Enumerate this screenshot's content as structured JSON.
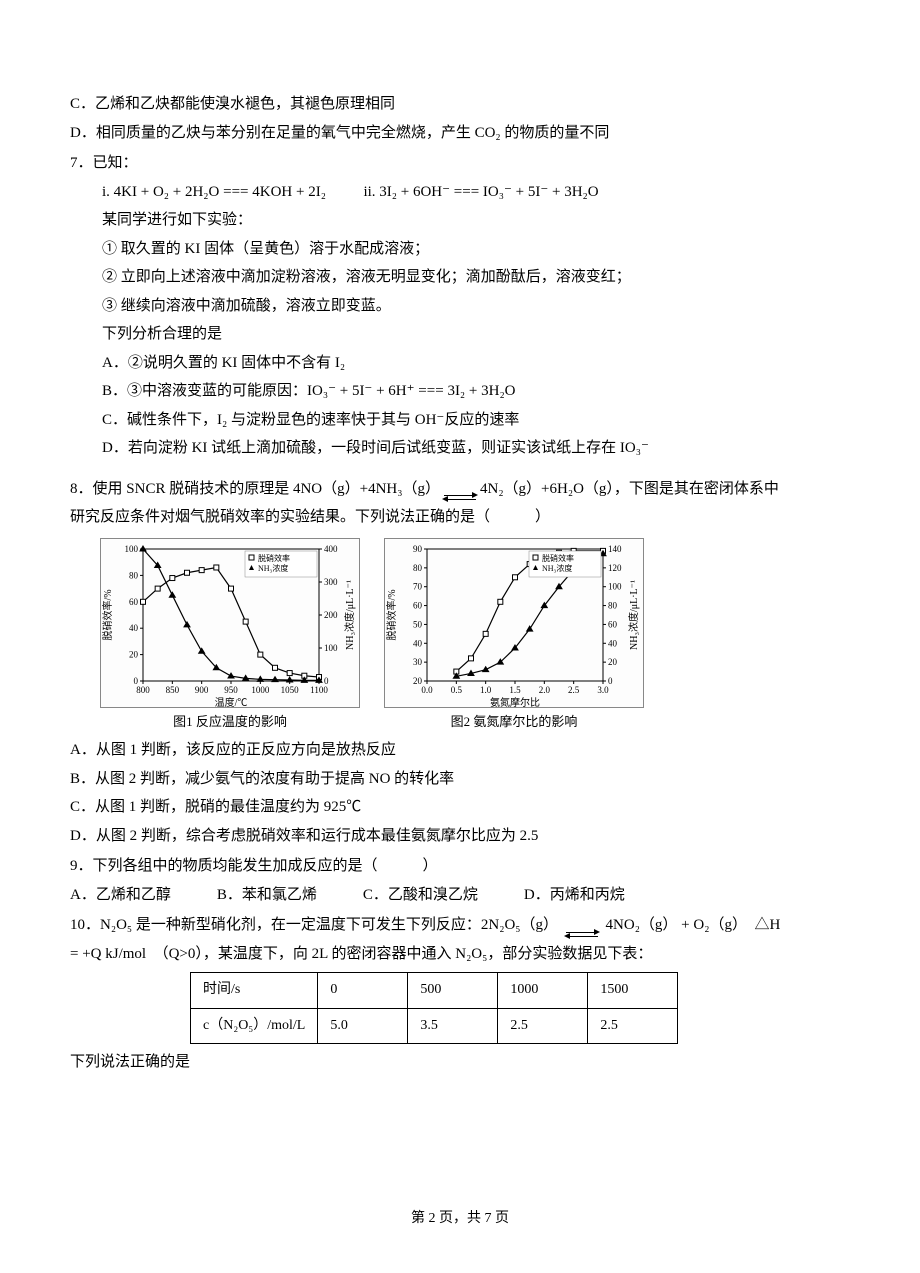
{
  "q6": {
    "optC": "C．乙烯和乙炔都能使溴水褪色，其褪色原理相同",
    "optD": "D．相同质量的乙炔与苯分别在足量的氧气中完全燃烧，产生 CO₂ 的物质的量不同"
  },
  "q7": {
    "num": "7．",
    "known": "已知：",
    "eq_i": "i. 4KI + O₂ + 2H₂O === 4KOH + 2I₂",
    "eq_ii": "ii. 3I₂ + 6OH⁻ === IO₃⁻ + 5I⁻ + 3H₂O",
    "intro": "某同学进行如下实验：",
    "step1": "① 取久置的 KI 固体（呈黄色）溶于水配成溶液；",
    "step2": "② 立即向上述溶液中滴加淀粉溶液，溶液无明显变化；滴加酚酞后，溶液变红；",
    "step3": "③ 继续向溶液中滴加硫酸，溶液立即变蓝。",
    "prompt": "下列分析合理的是",
    "optA": "A．②说明久置的 KI 固体中不含有 I₂",
    "optB": "B．③中溶液变蓝的可能原因：IO₃⁻ + 5I⁻ + 6H⁺ === 3I₂ + 3H₂O",
    "optC": "C．碱性条件下，I₂ 与淀粉显色的速率快于其与 OH⁻反应的速率",
    "optD": "D．若向淀粉 KI 试纸上滴加硫酸，一段时间后试纸变蓝，则证实该试纸上存在 IO₃⁻"
  },
  "q8": {
    "num": "8．",
    "stem_a": "使用 SNCR 脱硝技术的原理是 4NO（g）+4NH₃（g）",
    "stem_b": "4N₂（g）+6H₂O（g），下图是其在密闭体系中",
    "stem2": "研究反应条件对烟气脱硝效率的实验结果。下列说法正确的是（　　　）",
    "chart1": {
      "caption": "图1 反应温度的影响",
      "xlabel": "温度/℃",
      "ylabel_left": "脱硝效率/%",
      "ylabel_right": "NH₃浓度/μL·L⁻¹",
      "xticks": [
        "800",
        "850",
        "900",
        "950",
        "1000",
        "1050",
        "1100"
      ],
      "yticks_left": [
        0,
        20,
        40,
        60,
        80,
        100
      ],
      "yticks_right": [
        0,
        100,
        200,
        300,
        400
      ],
      "series_eff": {
        "marker": "square",
        "color": "#000000",
        "pts": [
          [
            800,
            60
          ],
          [
            825,
            70
          ],
          [
            850,
            78
          ],
          [
            875,
            82
          ],
          [
            900,
            84
          ],
          [
            925,
            86
          ],
          [
            950,
            70
          ],
          [
            975,
            45
          ],
          [
            1000,
            20
          ],
          [
            1025,
            10
          ],
          [
            1050,
            6
          ],
          [
            1075,
            4
          ],
          [
            1100,
            3
          ]
        ]
      },
      "series_nh3": {
        "marker": "triangle",
        "color": "#000000",
        "pts": [
          [
            800,
            400
          ],
          [
            825,
            350
          ],
          [
            850,
            260
          ],
          [
            875,
            170
          ],
          [
            900,
            90
          ],
          [
            925,
            40
          ],
          [
            950,
            15
          ],
          [
            975,
            8
          ],
          [
            1000,
            5
          ],
          [
            1025,
            4
          ],
          [
            1050,
            3
          ],
          [
            1075,
            2
          ],
          [
            1100,
            2
          ]
        ]
      },
      "legend": [
        "脱硝效率",
        "NH₃浓度"
      ]
    },
    "chart2": {
      "caption": "图2 氨氮摩尔比的影响",
      "xlabel": "氨氮摩尔比",
      "ylabel_left": "脱硝效率/%",
      "ylabel_right": "NH₃浓度/μL·L⁻¹",
      "xticks": [
        "0.0",
        "0.5",
        "1.0",
        "1.5",
        "2.0",
        "2.5",
        "3.0"
      ],
      "yticks_left": [
        20,
        30,
        40,
        50,
        60,
        70,
        80,
        90
      ],
      "yticks_right": [
        0,
        20,
        40,
        60,
        80,
        100,
        120,
        140
      ],
      "series_eff": {
        "marker": "square",
        "color": "#000000",
        "pts": [
          [
            0.5,
            25
          ],
          [
            0.75,
            32
          ],
          [
            1.0,
            45
          ],
          [
            1.25,
            62
          ],
          [
            1.5,
            75
          ],
          [
            1.75,
            82
          ],
          [
            2.0,
            86
          ],
          [
            2.25,
            88
          ],
          [
            2.5,
            89
          ],
          [
            3.0,
            89
          ]
        ]
      },
      "series_nh3": {
        "marker": "triangle",
        "color": "#000000",
        "pts": [
          [
            0.5,
            5
          ],
          [
            0.75,
            8
          ],
          [
            1.0,
            12
          ],
          [
            1.25,
            20
          ],
          [
            1.5,
            35
          ],
          [
            1.75,
            55
          ],
          [
            2.0,
            80
          ],
          [
            2.25,
            100
          ],
          [
            2.5,
            118
          ],
          [
            3.0,
            135
          ]
        ]
      },
      "legend": [
        "脱硝效率",
        "NH₃浓度"
      ]
    },
    "optA": "A．从图 1 判断，该反应的正反应方向是放热反应",
    "optB": "B．从图 2 判断，减少氨气的浓度有助于提高 NO 的转化率",
    "optC": "C．从图 1 判断，脱硝的最佳温度约为 925℃",
    "optD": "D．从图 2 判断，综合考虑脱硝效率和运行成本最佳氨氮摩尔比应为 2.5"
  },
  "q9": {
    "num": "9．",
    "stem": "下列各组中的物质均能发生加成反应的是（　　　）",
    "optA": "A．乙烯和乙醇",
    "optB": "B．苯和氯乙烯",
    "optC": "C．乙酸和溴乙烷",
    "optD": "D．丙烯和丙烷"
  },
  "q10": {
    "num": "10．",
    "stem_a": "N₂O₅ 是一种新型硝化剂，在一定温度下可发生下列反应：2N₂O₅（g）",
    "stem_b": "4NO₂（g） + O₂（g）　△H",
    "stem2": "= +Q kJ/mol　（Q>0），某温度下，向 2L 的密闭容器中通入 N₂O₅，部分实验数据见下表：",
    "table": {
      "headers": [
        "时间/s",
        "0",
        "500",
        "1000",
        "1500"
      ],
      "row2": [
        "c（N₂O₅）/mol/L",
        "5.0",
        "3.5",
        "2.5",
        "2.5"
      ]
    },
    "after": "下列说法正确的是"
  },
  "footer": "第 2 页，共 7 页"
}
